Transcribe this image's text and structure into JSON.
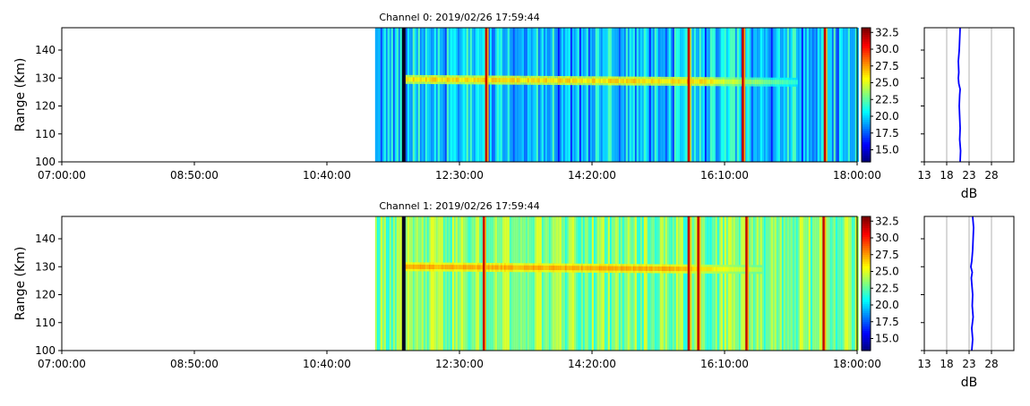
{
  "colors": {
    "jet": [
      "#00007f",
      "#0000ff",
      "#007fff",
      "#00ffff",
      "#7fff7f",
      "#ffff00",
      "#ff7f00",
      "#ff0000",
      "#7f0000"
    ],
    "profile_line": "#0000ff",
    "no_data_background": "#ffffff",
    "grid": "#b0b0b0"
  },
  "chart_data": [
    {
      "type": "heatmap",
      "title": "Channel 0: 2019/02/26 17:59:44",
      "xlabel": "",
      "ylabel": "Range (Km)",
      "x_ticks": [
        "07:00:00",
        "08:50:00",
        "10:40:00",
        "12:30:00",
        "14:20:00",
        "16:10:00",
        "18:00:00"
      ],
      "x_range": [
        "07:00:00",
        "18:00:00"
      ],
      "y_ticks": [
        100,
        110,
        120,
        130,
        140
      ],
      "ylim": [
        100,
        148
      ],
      "data_start": "11:20:00",
      "colorbar": {
        "ticks": [
          "15.0",
          "17.5",
          "20.0",
          "22.5",
          "25.0",
          "27.5",
          "30.0",
          "32.5"
        ],
        "range": [
          13.2,
          33.2
        ]
      },
      "background_db": 20.3,
      "echo_layer": {
        "range_km_start": 129.5,
        "range_km_end": 128.5,
        "time_start": "11:45:00",
        "time_end": "17:10:00",
        "peak_db": 26.5
      },
      "dark_columns": [
        "11:43:00"
      ],
      "bright_columns": [
        "12:52:00",
        "15:40:00",
        "16:25:00",
        "17:33:00"
      ],
      "profile": {
        "xlabel": "dB",
        "x_ticks": [
          13,
          18,
          23,
          28
        ],
        "xlim": [
          13,
          33
        ],
        "ranges_km": [
          100,
          104,
          108,
          112,
          116,
          120,
          124,
          126,
          128,
          130,
          132,
          136,
          140,
          144,
          148
        ],
        "values_db": [
          21.0,
          21.1,
          20.9,
          21.0,
          20.9,
          20.8,
          20.9,
          21.0,
          20.7,
          20.6,
          20.7,
          20.6,
          20.8,
          20.9,
          21.0
        ]
      }
    },
    {
      "type": "heatmap",
      "title": "Channel 1: 2019/02/26 17:59:44",
      "xlabel": "",
      "ylabel": "Range (Km)",
      "x_ticks": [
        "07:00:00",
        "08:50:00",
        "10:40:00",
        "12:30:00",
        "14:20:00",
        "16:10:00",
        "18:00:00"
      ],
      "x_range": [
        "07:00:00",
        "18:00:00"
      ],
      "y_ticks": [
        100,
        110,
        120,
        130,
        140
      ],
      "ylim": [
        100,
        148
      ],
      "data_start": "11:20:00",
      "colorbar": {
        "ticks": [
          "15.0",
          "17.5",
          "20.0",
          "22.5",
          "25.0",
          "27.5",
          "30.0",
          "32.5"
        ],
        "range": [
          13.2,
          33.2
        ]
      },
      "background_db": 23.2,
      "echo_layer": {
        "range_km_start": 130,
        "range_km_end": 129,
        "time_start": "11:45:00",
        "time_end": "16:40:00",
        "peak_db": 27.5
      },
      "dark_columns": [
        "11:43:00"
      ],
      "bright_columns": [
        "12:50:00",
        "15:40:00",
        "15:48:00",
        "16:28:00",
        "17:32:00"
      ],
      "profile": {
        "xlabel": "dB",
        "x_ticks": [
          13,
          18,
          23,
          28
        ],
        "xlim": [
          13,
          33
        ],
        "ranges_km": [
          100,
          104,
          108,
          112,
          116,
          120,
          124,
          126,
          128,
          130,
          132,
          136,
          140,
          144,
          148
        ],
        "values_db": [
          23.6,
          23.8,
          23.6,
          23.9,
          23.7,
          23.8,
          23.6,
          23.5,
          23.7,
          23.4,
          23.6,
          23.8,
          23.9,
          24.0,
          23.8
        ]
      }
    }
  ]
}
